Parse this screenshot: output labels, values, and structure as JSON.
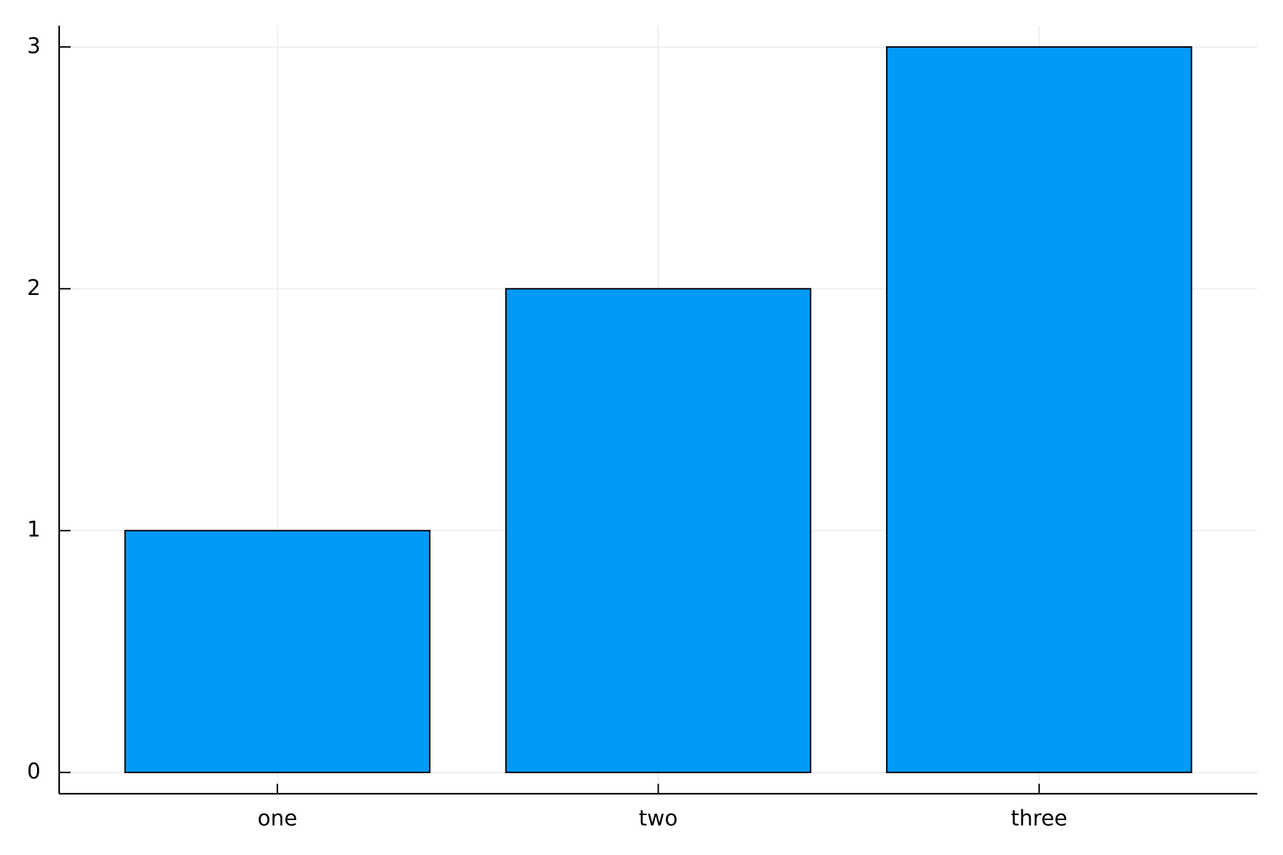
{
  "chart_data": {
    "type": "bar",
    "categories": [
      "one",
      "two",
      "three"
    ],
    "values": [
      1,
      2,
      3
    ],
    "color": "#009af9",
    "ylim": [
      -0.088,
      3.088
    ],
    "yticks": [
      0,
      1,
      2,
      3
    ],
    "grid": true
  }
}
